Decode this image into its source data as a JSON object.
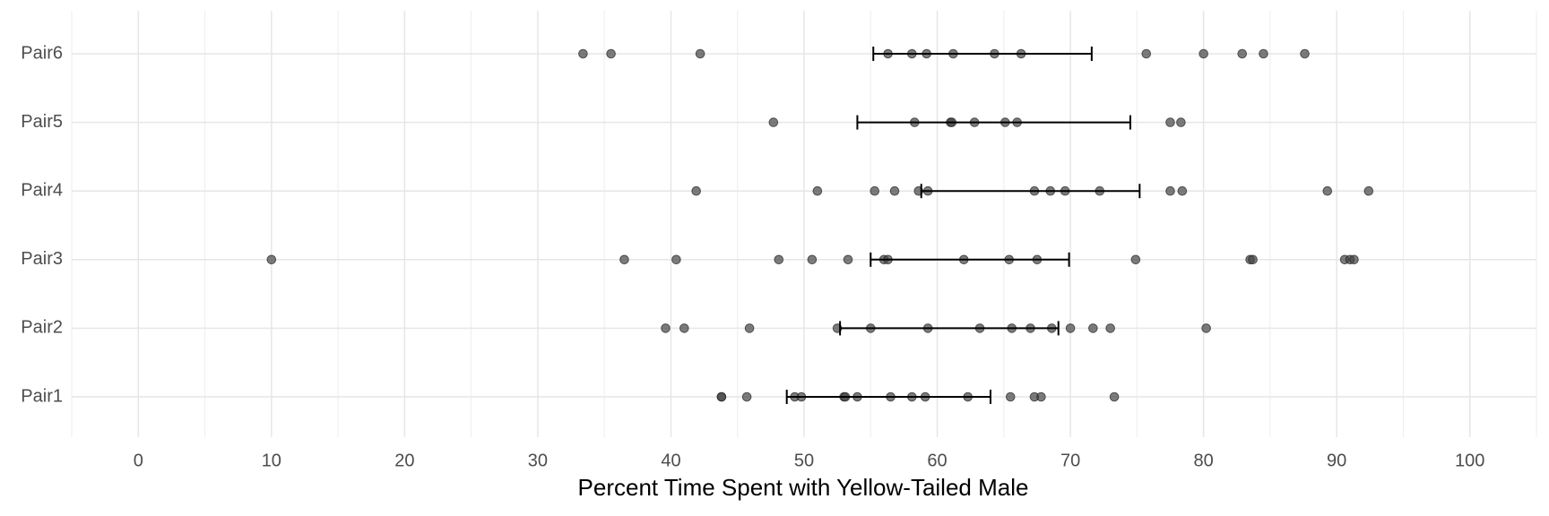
{
  "chart_data": {
    "type": "strip",
    "x_label": "Percent Time Spent with Yellow-Tailed Male",
    "categories": [
      "Pair1",
      "Pair2",
      "Pair3",
      "Pair4",
      "Pair5",
      "Pair6"
    ],
    "points": [
      [
        43.8,
        43.8,
        45.7,
        49.3,
        49.8,
        53.0,
        53.1,
        54.0,
        56.5,
        58.1,
        59.1,
        62.3,
        65.5,
        67.3,
        67.8,
        73.3
      ],
      [
        39.6,
        41.0,
        45.9,
        52.5,
        55.0,
        59.3,
        63.2,
        65.6,
        67.0,
        68.6,
        70.0,
        71.7,
        73.0,
        80.2
      ],
      [
        10.0,
        36.5,
        40.4,
        48.1,
        50.6,
        53.3,
        56.0,
        56.3,
        62.0,
        65.4,
        67.5,
        74.9,
        83.5,
        83.7,
        90.6,
        91.0,
        91.3
      ],
      [
        41.9,
        51.0,
        55.3,
        56.8,
        58.6,
        59.3,
        67.3,
        68.5,
        69.6,
        72.2,
        77.5,
        78.4,
        89.3,
        92.4
      ],
      [
        47.7,
        58.3,
        61.0,
        61.1,
        62.8,
        65.1,
        66.0,
        77.5,
        78.3
      ],
      [
        33.4,
        35.5,
        42.2,
        56.3,
        58.1,
        59.2,
        61.2,
        64.3,
        66.3,
        75.7,
        80.0,
        82.9,
        84.5,
        87.6
      ]
    ],
    "error_low": [
      48.7,
      52.7,
      55.0,
      58.8,
      54.0,
      55.2
    ],
    "error_high": [
      64.0,
      69.1,
      69.9,
      75.2,
      74.5,
      71.6
    ],
    "point_color": "#444444",
    "point_opacity": 0.7,
    "error_color": "#000000",
    "xlim": [
      -5,
      105
    ],
    "xticks": [
      0,
      10,
      20,
      30,
      40,
      50,
      60,
      70,
      80,
      90,
      100
    ],
    "xminor": [
      -5,
      5,
      15,
      25,
      35,
      45,
      55,
      65,
      75,
      85,
      95,
      105
    ],
    "grid": true
  }
}
